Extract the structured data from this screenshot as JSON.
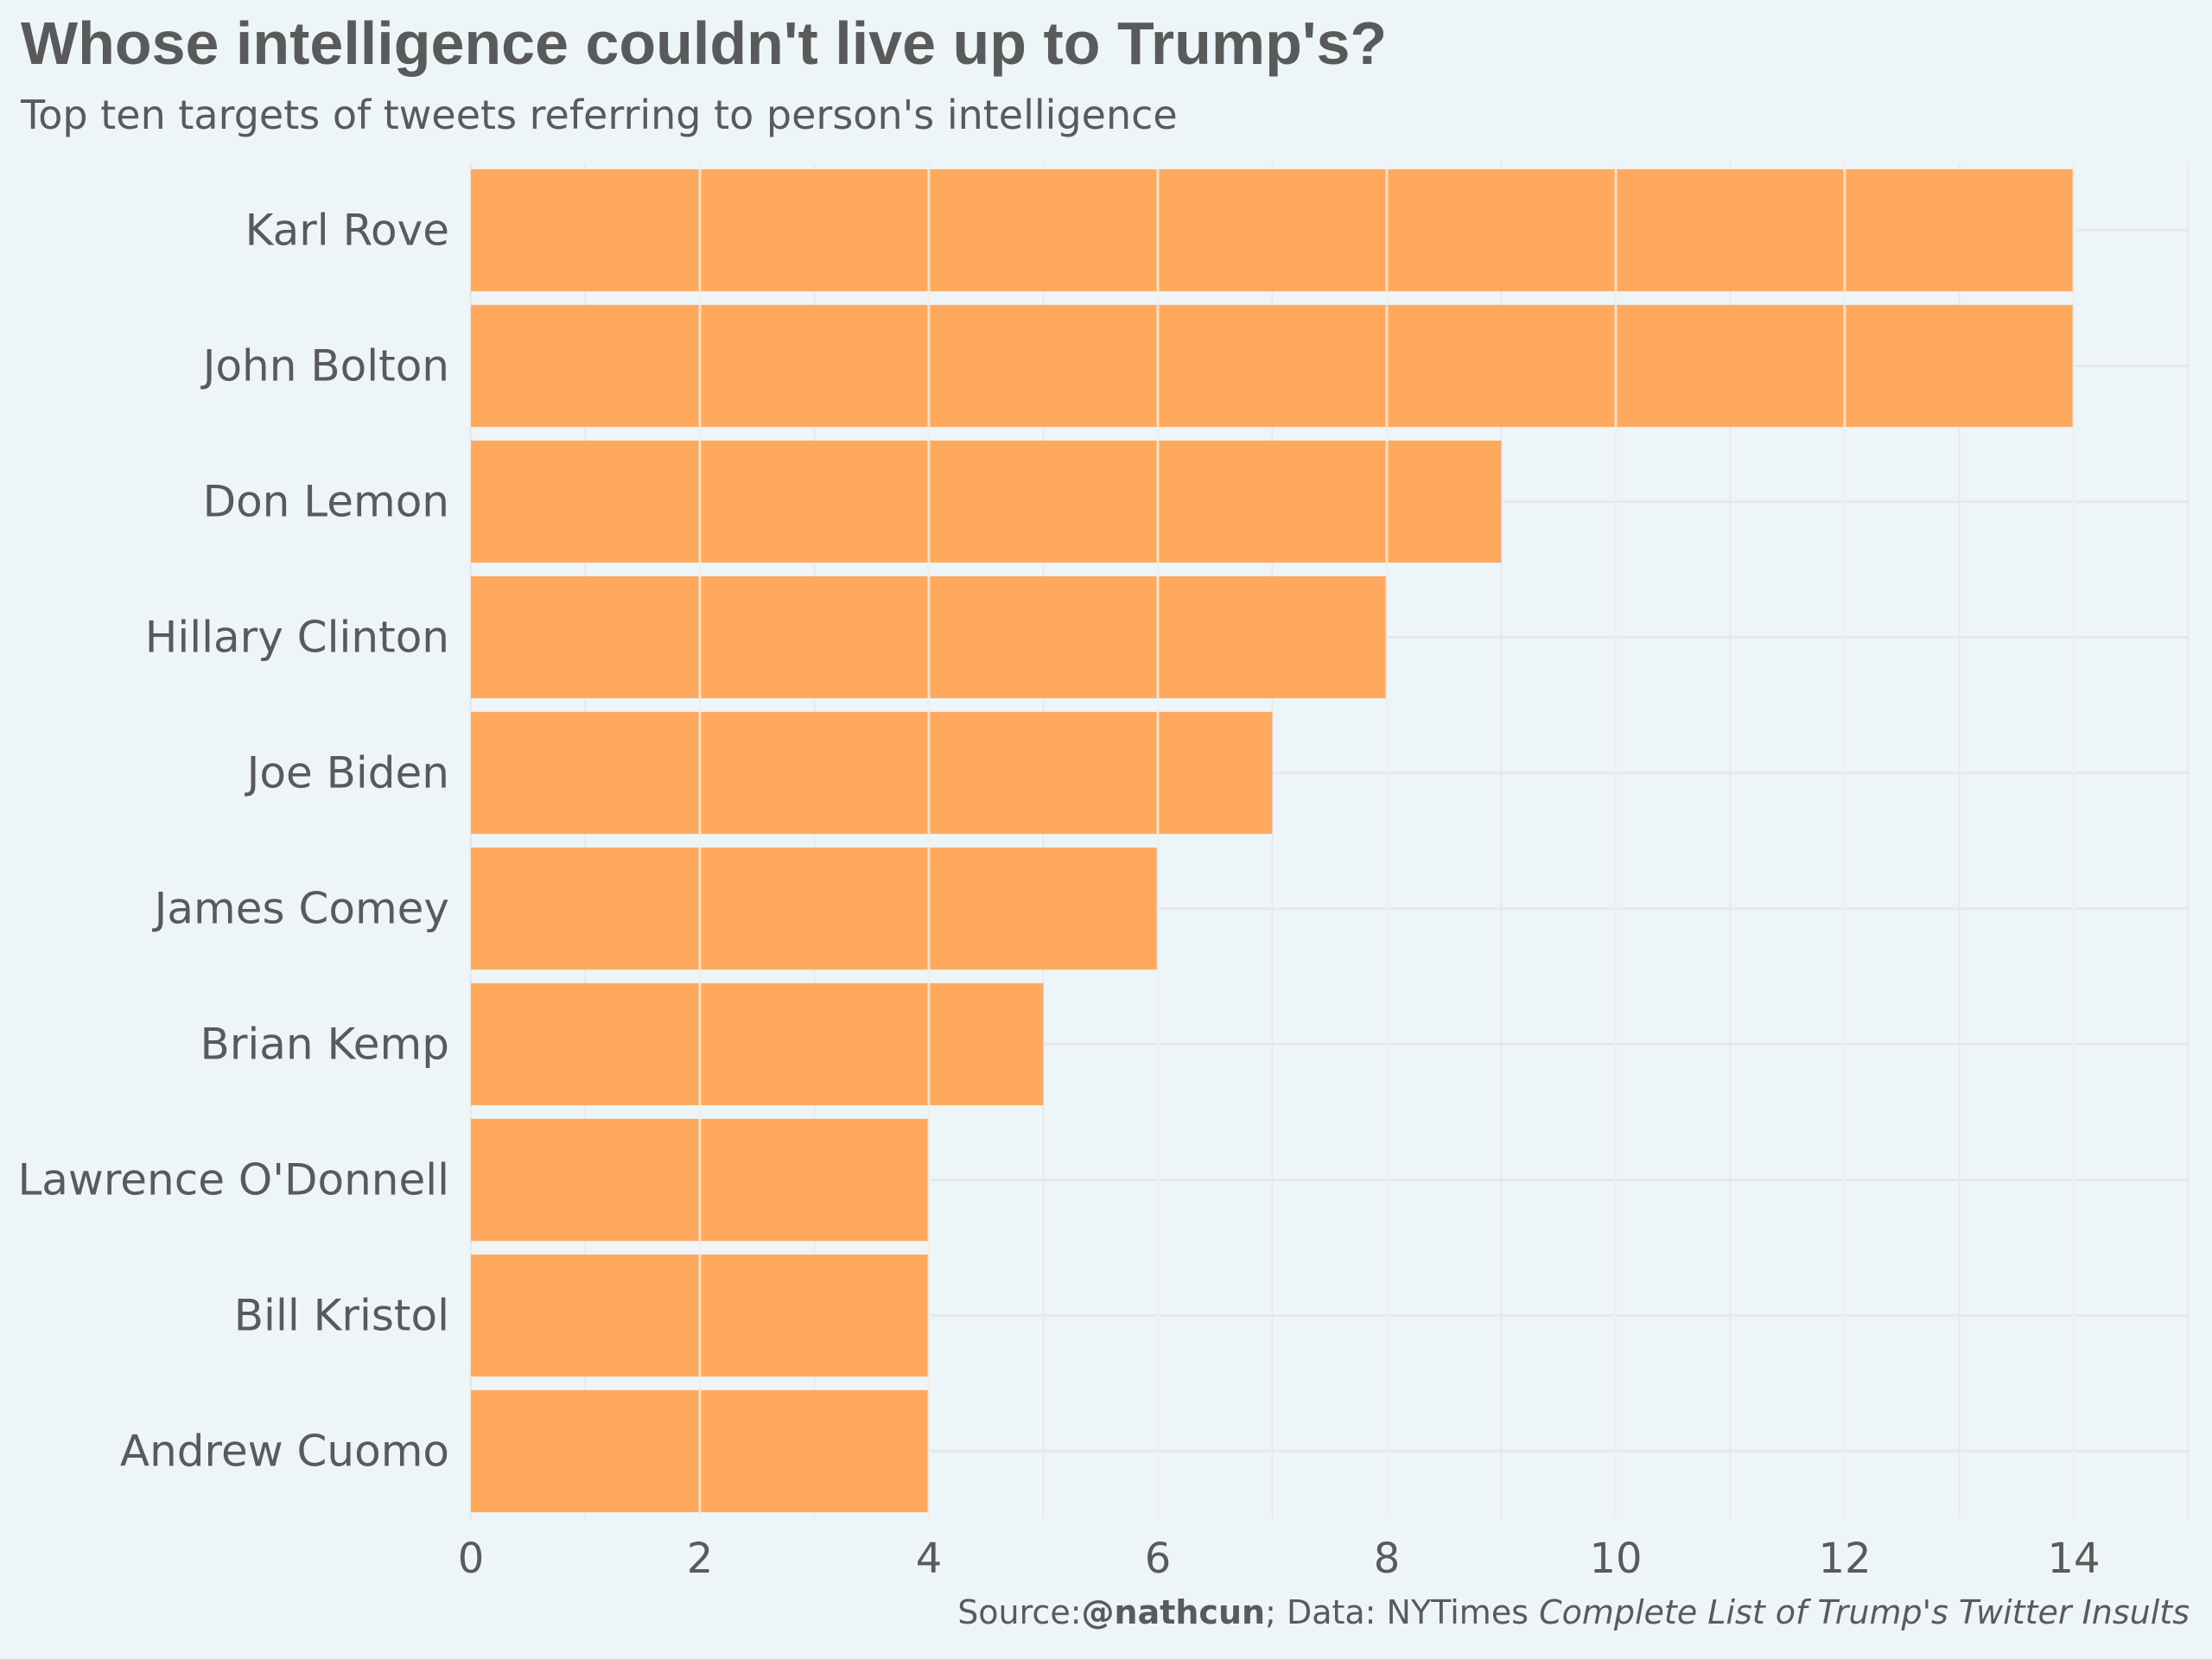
{
  "chart_data": {
    "type": "bar",
    "orientation": "horizontal",
    "title": "Whose intelligence couldn't live up to Trump's?",
    "subtitle": "Top ten targets of tweets referring to person's intelligence",
    "categories": [
      "Karl Rove",
      "John Bolton",
      "Don Lemon",
      "Hillary Clinton",
      "Joe Biden",
      "James Comey",
      "Brian Kemp",
      "Lawrence O'Donnell",
      "Bill Kristol",
      "Andrew Cuomo"
    ],
    "values": [
      14,
      14,
      9,
      8,
      7,
      6,
      5,
      4,
      4,
      4
    ],
    "xlim": [
      0,
      15
    ],
    "x_ticks": [
      "0",
      "2",
      "4",
      "6",
      "8",
      "10",
      "12",
      "14"
    ],
    "xlabel": "",
    "ylabel": "",
    "grid": true,
    "bar_color": "#ffa95e",
    "background_color": "#eef5f9"
  },
  "caption": {
    "prefix": "Source:",
    "handle": "@nathcun",
    "middle": "; Data: NYTimes ",
    "source_title": "Complete List of Trump's Twitter Insults"
  }
}
